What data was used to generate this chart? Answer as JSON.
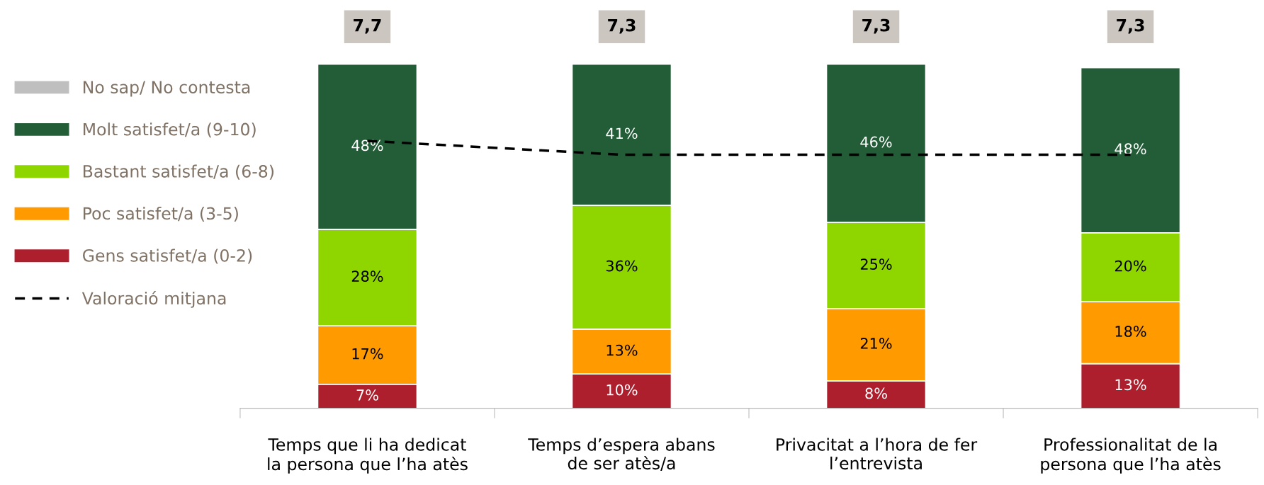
{
  "chart_data": {
    "type": "bar",
    "stacked": true,
    "categories": [
      "Temps que li ha dedicat\nla persona que l’ha atès",
      "Temps d’espera abans\nde ser atès/a",
      "Privacitat a l’hora de fer\nl’entrevista",
      "Professionalitat de la\npersona que l’ha atès"
    ],
    "series": [
      {
        "name": "Gens satisfet/a (0-2)",
        "color": "#ae1f2e",
        "values": [
          7,
          10,
          8,
          13
        ],
        "value_labels": [
          "7%",
          "10%",
          "8%",
          "13%"
        ]
      },
      {
        "name": "Poc satisfet/a (3-5)",
        "color": "#ff9a00",
        "values": [
          17,
          13,
          21,
          18
        ],
        "value_labels": [
          "17%",
          "13%",
          "21%",
          "18%"
        ]
      },
      {
        "name": "Bastant satisfet/a (6-8)",
        "color": "#8fd500",
        "values": [
          28,
          36,
          25,
          20
        ],
        "value_labels": [
          "28%",
          "36%",
          "25%",
          "20%"
        ]
      },
      {
        "name": "Molt satisfet/a (9-10)",
        "color": "#235d37",
        "values": [
          48,
          41,
          46,
          48
        ],
        "value_labels": [
          "48%",
          "41%",
          "46%",
          "48%"
        ]
      },
      {
        "name": "No sap/ No contesta",
        "color": "#bfbfbf",
        "values": [
          null,
          null,
          null,
          null
        ]
      },
      {
        "name": "Valoració mitjana",
        "type": "line",
        "axis": "y2",
        "color": "#000000",
        "line_style": "dashed",
        "values": [
          7.7,
          7.3,
          7.3,
          7.3
        ],
        "value_labels": [
          "7,7",
          "7,3",
          "7,3",
          "7,3"
        ]
      }
    ],
    "tick_labels": "x",
    "data_labels": true,
    "legend": "left",
    "grid": false
  }
}
